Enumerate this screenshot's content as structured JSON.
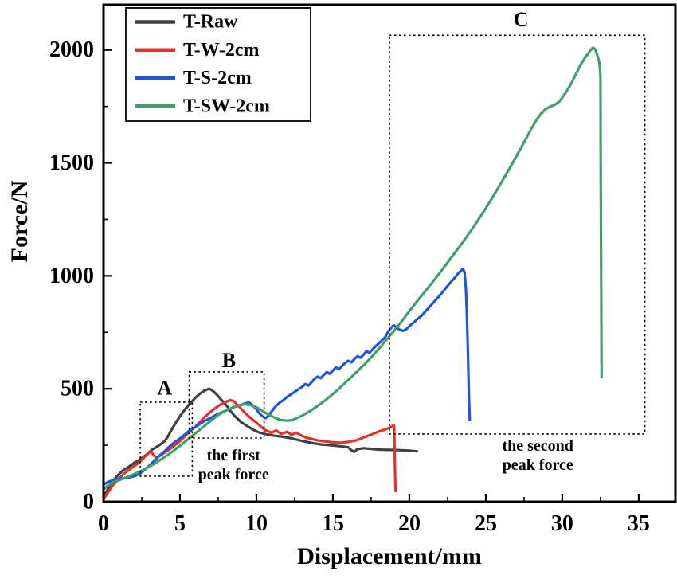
{
  "figure": {
    "background": "#ffffff",
    "frame_color": "#000000"
  },
  "chart_data": {
    "type": "line",
    "title": "",
    "xlabel": "Displacement/mm",
    "ylabel": "Force/N",
    "xlim": [
      0,
      37.4
    ],
    "ylim": [
      0,
      2200
    ],
    "x_ticks": [
      0,
      5,
      10,
      15,
      20,
      25,
      30,
      35
    ],
    "y_ticks": [
      0,
      500,
      1000,
      1500,
      2000
    ],
    "x_minor_step": 2.5,
    "y_minor_step": 250,
    "grid": false,
    "legend_position": "top-left",
    "series": [
      {
        "name": "T-Raw",
        "color": "#404040",
        "points": [
          [
            0,
            18
          ],
          [
            0.2,
            45
          ],
          [
            0.4,
            70
          ],
          [
            0.7,
            98
          ],
          [
            1,
            122
          ],
          [
            1.3,
            140
          ],
          [
            1.6,
            152
          ],
          [
            2,
            172
          ],
          [
            2.4,
            188
          ],
          [
            2.8,
            208
          ],
          [
            3.2,
            232
          ],
          [
            3.6,
            248
          ],
          [
            4,
            268
          ],
          [
            4.2,
            288
          ],
          [
            4.5,
            325
          ],
          [
            4.8,
            358
          ],
          [
            5.1,
            388
          ],
          [
            5.4,
            415
          ],
          [
            5.7,
            438
          ],
          [
            6,
            460
          ],
          [
            6.3,
            478
          ],
          [
            6.6,
            492
          ],
          [
            6.9,
            500
          ],
          [
            7.1,
            494
          ],
          [
            7.4,
            475
          ],
          [
            7.7,
            452
          ],
          [
            8,
            430
          ],
          [
            8.3,
            402
          ],
          [
            8.6,
            378
          ],
          [
            9,
            352
          ],
          [
            9.4,
            335
          ],
          [
            9.8,
            318
          ],
          [
            10.2,
            306
          ],
          [
            10.7,
            298
          ],
          [
            11.2,
            292
          ],
          [
            11.7,
            288
          ],
          [
            12.2,
            282
          ],
          [
            12.7,
            274
          ],
          [
            13.2,
            266
          ],
          [
            13.7,
            259
          ],
          [
            14.2,
            254
          ],
          [
            14.7,
            251
          ],
          [
            15.2,
            248
          ],
          [
            15.7,
            244
          ],
          [
            16,
            241
          ],
          [
            16.2,
            228
          ],
          [
            16.4,
            221
          ],
          [
            16.6,
            233
          ],
          [
            17,
            237
          ],
          [
            17.5,
            234
          ],
          [
            18,
            231
          ],
          [
            18.5,
            230
          ],
          [
            19,
            229
          ],
          [
            19.5,
            228
          ],
          [
            20,
            226
          ],
          [
            20.5,
            223
          ]
        ]
      },
      {
        "name": "T-W-2cm",
        "color": "#e53228",
        "points": [
          [
            0,
            12
          ],
          [
            0.3,
            42
          ],
          [
            0.6,
            72
          ],
          [
            1,
            102
          ],
          [
            1.3,
            122
          ],
          [
            1.6,
            138
          ],
          [
            2,
            158
          ],
          [
            2.3,
            172
          ],
          [
            2.6,
            192
          ],
          [
            2.9,
            212
          ],
          [
            3.1,
            222
          ],
          [
            3.3,
            204
          ],
          [
            3.5,
            196
          ],
          [
            3.8,
            208
          ],
          [
            4.1,
            222
          ],
          [
            4.4,
            236
          ],
          [
            4.7,
            252
          ],
          [
            5,
            268
          ],
          [
            5.3,
            288
          ],
          [
            5.6,
            308
          ],
          [
            6,
            332
          ],
          [
            6.3,
            352
          ],
          [
            6.6,
            374
          ],
          [
            7,
            398
          ],
          [
            7.3,
            414
          ],
          [
            7.6,
            428
          ],
          [
            8,
            442
          ],
          [
            8.3,
            450
          ],
          [
            8.5,
            446
          ],
          [
            8.8,
            426
          ],
          [
            9.1,
            404
          ],
          [
            9.4,
            384
          ],
          [
            9.7,
            366
          ],
          [
            10,
            350
          ],
          [
            10.3,
            332
          ],
          [
            10.6,
            316
          ],
          [
            11,
            306
          ],
          [
            11.3,
            316
          ],
          [
            11.6,
            300
          ],
          [
            12,
            310
          ],
          [
            12.3,
            296
          ],
          [
            12.6,
            306
          ],
          [
            13,
            291
          ],
          [
            13.3,
            283
          ],
          [
            13.6,
            278
          ],
          [
            14,
            272
          ],
          [
            14.5,
            267
          ],
          [
            15,
            263
          ],
          [
            15.5,
            261
          ],
          [
            16,
            265
          ],
          [
            16.5,
            271
          ],
          [
            17,
            284
          ],
          [
            17.5,
            297
          ],
          [
            18,
            311
          ],
          [
            18.5,
            322
          ],
          [
            18.8,
            331
          ],
          [
            19,
            340
          ],
          [
            19.03,
            250
          ],
          [
            19.06,
            140
          ],
          [
            19.1,
            48
          ]
        ]
      },
      {
        "name": "T-S-2cm",
        "color": "#1e56d6",
        "points": [
          [
            0,
            75
          ],
          [
            0.3,
            88
          ],
          [
            0.6,
            95
          ],
          [
            1,
            100
          ],
          [
            1.4,
            104
          ],
          [
            1.8,
            109
          ],
          [
            2.1,
            115
          ],
          [
            2.4,
            126
          ],
          [
            2.7,
            142
          ],
          [
            3,
            160
          ],
          [
            3.3,
            180
          ],
          [
            3.6,
            200
          ],
          [
            4,
            224
          ],
          [
            4.3,
            244
          ],
          [
            4.6,
            261
          ],
          [
            5,
            280
          ],
          [
            5.3,
            297
          ],
          [
            5.6,
            314
          ],
          [
            6,
            331
          ],
          [
            6.3,
            344
          ],
          [
            6.6,
            357
          ],
          [
            7,
            371
          ],
          [
            7.3,
            382
          ],
          [
            7.6,
            392
          ],
          [
            8,
            403
          ],
          [
            8.3,
            412
          ],
          [
            8.6,
            421
          ],
          [
            9,
            429
          ],
          [
            9.3,
            436
          ],
          [
            9.5,
            440
          ],
          [
            9.7,
            431
          ],
          [
            10,
            409
          ],
          [
            10.2,
            391
          ],
          [
            10.4,
            378
          ],
          [
            10.6,
            370
          ],
          [
            10.8,
            381
          ],
          [
            11,
            400
          ],
          [
            11.2,
            418
          ],
          [
            11.5,
            438
          ],
          [
            11.8,
            452
          ],
          [
            12,
            464
          ],
          [
            12.3,
            477
          ],
          [
            12.6,
            491
          ],
          [
            13,
            509
          ],
          [
            13.2,
            521
          ],
          [
            13.4,
            514
          ],
          [
            13.6,
            529
          ],
          [
            13.8,
            544
          ],
          [
            14,
            554
          ],
          [
            14.2,
            547
          ],
          [
            14.4,
            561
          ],
          [
            14.6,
            574
          ],
          [
            14.8,
            567
          ],
          [
            15,
            581
          ],
          [
            15.2,
            595
          ],
          [
            15.4,
            587
          ],
          [
            15.6,
            601
          ],
          [
            15.8,
            614
          ],
          [
            16,
            624
          ],
          [
            16.2,
            617
          ],
          [
            16.4,
            631
          ],
          [
            16.6,
            644
          ],
          [
            16.8,
            637
          ],
          [
            17,
            651
          ],
          [
            17.2,
            667
          ],
          [
            17.4,
            659
          ],
          [
            17.6,
            675
          ],
          [
            17.8,
            689
          ],
          [
            18,
            701
          ],
          [
            18.2,
            714
          ],
          [
            18.4,
            727
          ],
          [
            18.5,
            739
          ],
          [
            18.6,
            751
          ],
          [
            18.7,
            761
          ],
          [
            18.8,
            769
          ],
          [
            18.9,
            777
          ],
          [
            19,
            781
          ],
          [
            19.1,
            774
          ],
          [
            19.25,
            767
          ],
          [
            19.4,
            761
          ],
          [
            19.6,
            757
          ],
          [
            19.8,
            764
          ],
          [
            20,
            777
          ],
          [
            20.2,
            789
          ],
          [
            20.5,
            807
          ],
          [
            20.8,
            824
          ],
          [
            21,
            839
          ],
          [
            21.3,
            861
          ],
          [
            21.6,
            884
          ],
          [
            22,
            914
          ],
          [
            22.3,
            939
          ],
          [
            22.6,
            964
          ],
          [
            23,
            994
          ],
          [
            23.2,
            1011
          ],
          [
            23.4,
            1024
          ],
          [
            23.5,
            1030
          ],
          [
            23.6,
            1019
          ],
          [
            23.65,
            988
          ],
          [
            23.7,
            938
          ],
          [
            23.75,
            858
          ],
          [
            23.8,
            738
          ],
          [
            23.85,
            598
          ],
          [
            23.9,
            458
          ],
          [
            23.95,
            362
          ]
        ]
      },
      {
        "name": "T-SW-2cm",
        "color": "#3fa06a",
        "points": [
          [
            0,
            55
          ],
          [
            0.3,
            72
          ],
          [
            0.6,
            85
          ],
          [
            1,
            95
          ],
          [
            1.5,
            108
          ],
          [
            2,
            122
          ],
          [
            2.5,
            138
          ],
          [
            3,
            155
          ],
          [
            3.5,
            176
          ],
          [
            4,
            198
          ],
          [
            4.5,
            222
          ],
          [
            5,
            248
          ],
          [
            5.5,
            275
          ],
          [
            6,
            302
          ],
          [
            6.5,
            330
          ],
          [
            7,
            358
          ],
          [
            7.5,
            384
          ],
          [
            8,
            404
          ],
          [
            8.5,
            419
          ],
          [
            9,
            429
          ],
          [
            9.3,
            432
          ],
          [
            9.6,
            428
          ],
          [
            10,
            418
          ],
          [
            10.3,
            406
          ],
          [
            10.6,
            393
          ],
          [
            11,
            379
          ],
          [
            11.3,
            369
          ],
          [
            11.6,
            362
          ],
          [
            12,
            359
          ],
          [
            12.3,
            361
          ],
          [
            12.6,
            369
          ],
          [
            13,
            381
          ],
          [
            13.5,
            401
          ],
          [
            14,
            424
          ],
          [
            14.5,
            449
          ],
          [
            15,
            477
          ],
          [
            15.5,
            507
          ],
          [
            16,
            539
          ],
          [
            16.5,
            571
          ],
          [
            17,
            604
          ],
          [
            17.5,
            639
          ],
          [
            18,
            677
          ],
          [
            18.5,
            717
          ],
          [
            19,
            757
          ],
          [
            19.5,
            799
          ],
          [
            20,
            844
          ],
          [
            20.5,
            887
          ],
          [
            21,
            929
          ],
          [
            21.5,
            971
          ],
          [
            22,
            1014
          ],
          [
            22.5,
            1059
          ],
          [
            23,
            1104
          ],
          [
            23.5,
            1149
          ],
          [
            24,
            1197
          ],
          [
            24.5,
            1247
          ],
          [
            25,
            1299
          ],
          [
            25.5,
            1354
          ],
          [
            26,
            1411
          ],
          [
            26.5,
            1469
          ],
          [
            27,
            1529
          ],
          [
            27.5,
            1591
          ],
          [
            28,
            1654
          ],
          [
            28.3,
            1689
          ],
          [
            28.6,
            1717
          ],
          [
            28.9,
            1737
          ],
          [
            29.2,
            1749
          ],
          [
            29.5,
            1757
          ],
          [
            29.8,
            1771
          ],
          [
            30,
            1789
          ],
          [
            30.3,
            1819
          ],
          [
            30.6,
            1854
          ],
          [
            30.9,
            1894
          ],
          [
            31.2,
            1934
          ],
          [
            31.5,
            1967
          ],
          [
            31.8,
            1994
          ],
          [
            32,
            2010
          ],
          [
            32.1,
            2007
          ],
          [
            32.2,
            1994
          ],
          [
            32.3,
            1974
          ],
          [
            32.4,
            1952
          ],
          [
            32.45,
            1930
          ],
          [
            32.5,
            1880
          ],
          [
            32.52,
            1400
          ],
          [
            32.55,
            900
          ],
          [
            32.57,
            552
          ]
        ]
      }
    ],
    "annotations": {
      "boxes": [
        {
          "label": "A",
          "x0": 2.4,
          "x1": 5.8,
          "y0": 113,
          "y1": 441,
          "label_x": 4.0,
          "label_y": 505
        },
        {
          "label": "B",
          "x0": 5.6,
          "x1": 10.5,
          "y0": 282,
          "y1": 575,
          "label_x": 8.2,
          "label_y": 625
        },
        {
          "label": "C",
          "x0": 18.7,
          "x1": 35.4,
          "y0": 300,
          "y1": 2065,
          "label_x": 27.3,
          "label_y": 2135
        }
      ],
      "texts": [
        {
          "lines": [
            "the first",
            "peak force"
          ],
          "x": 8.5,
          "y": 205
        },
        {
          "lines": [
            "the second",
            "peak force"
          ],
          "x": 28.4,
          "y": 247
        }
      ]
    }
  }
}
